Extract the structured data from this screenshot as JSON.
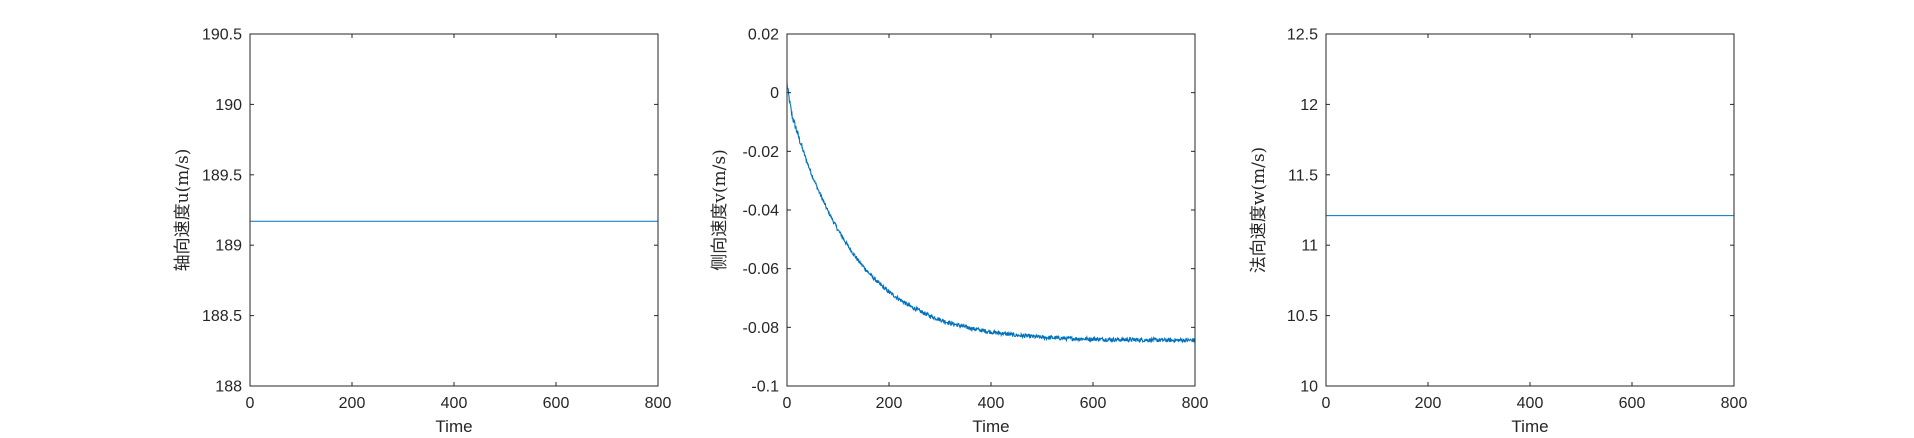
{
  "chart_data": [
    {
      "type": "line",
      "title": "",
      "xlabel": "Time",
      "ylabel": "轴向速度u(m/s)",
      "xlim": [
        0,
        800
      ],
      "ylim": [
        188,
        190.5
      ],
      "xticks": [
        0,
        200,
        400,
        600,
        800
      ],
      "yticks": [
        188,
        188.5,
        189,
        189.5,
        190,
        190.5
      ],
      "xtick_labels": [
        "0",
        "200",
        "400",
        "600",
        "800"
      ],
      "ytick_labels": [
        "188",
        "188.5",
        "189",
        "189.5",
        "190",
        "190.5"
      ],
      "grid": false,
      "series": [
        {
          "name": "u",
          "color": "#0072BD",
          "x": [
            0,
            100,
            200,
            300,
            400,
            500,
            600,
            700,
            800
          ],
          "y": [
            189.17,
            189.17,
            189.17,
            189.17,
            189.17,
            189.17,
            189.17,
            189.17,
            189.17
          ]
        }
      ]
    },
    {
      "type": "line",
      "title": "",
      "xlabel": "Time",
      "ylabel": "侧向速度v(m/s)",
      "xlim": [
        0,
        800
      ],
      "ylim": [
        -0.1,
        0.02
      ],
      "xticks": [
        0,
        200,
        400,
        600,
        800
      ],
      "yticks": [
        -0.1,
        -0.08,
        -0.06,
        -0.04,
        -0.02,
        0,
        0.02
      ],
      "xtick_labels": [
        "0",
        "200",
        "400",
        "600",
        "800"
      ],
      "ytick_labels": [
        "-0.1",
        "-0.08",
        "-0.06",
        "-0.04",
        "-0.02",
        "0",
        "0.02"
      ],
      "grid": false,
      "series": [
        {
          "name": "v",
          "color": "#0072BD",
          "x": [
            0,
            5,
            10,
            20,
            30,
            40,
            50,
            60,
            80,
            100,
            120,
            140,
            160,
            180,
            200,
            240,
            280,
            320,
            360,
            400,
            450,
            500,
            550,
            600,
            650,
            700,
            750,
            800
          ],
          "y": [
            0.003,
            -0.003,
            -0.008,
            -0.0135,
            -0.019,
            -0.024,
            -0.0285,
            -0.0327,
            -0.0403,
            -0.0468,
            -0.0524,
            -0.0573,
            -0.0614,
            -0.065,
            -0.068,
            -0.0727,
            -0.0761,
            -0.0786,
            -0.0803,
            -0.0816,
            -0.0827,
            -0.0834,
            -0.0838,
            -0.084,
            -0.0842,
            -0.0843,
            -0.0844,
            -0.0844
          ]
        }
      ]
    },
    {
      "type": "line",
      "title": "",
      "xlabel": "Time",
      "ylabel": "法向速度w(m/s)",
      "xlim": [
        0,
        800
      ],
      "ylim": [
        10,
        12.5
      ],
      "xticks": [
        0,
        200,
        400,
        600,
        800
      ],
      "yticks": [
        10,
        10.5,
        11,
        11.5,
        12,
        12.5
      ],
      "xtick_labels": [
        "0",
        "200",
        "400",
        "600",
        "800"
      ],
      "ytick_labels": [
        "10",
        "10.5",
        "11",
        "11.5",
        "12",
        "12.5"
      ],
      "grid": false,
      "series": [
        {
          "name": "w",
          "color": "#0072BD",
          "x": [
            0,
            100,
            200,
            300,
            400,
            500,
            600,
            700,
            800
          ],
          "y": [
            11.21,
            11.21,
            11.21,
            11.21,
            11.21,
            11.21,
            11.21,
            11.21,
            11.21
          ]
        }
      ]
    }
  ]
}
